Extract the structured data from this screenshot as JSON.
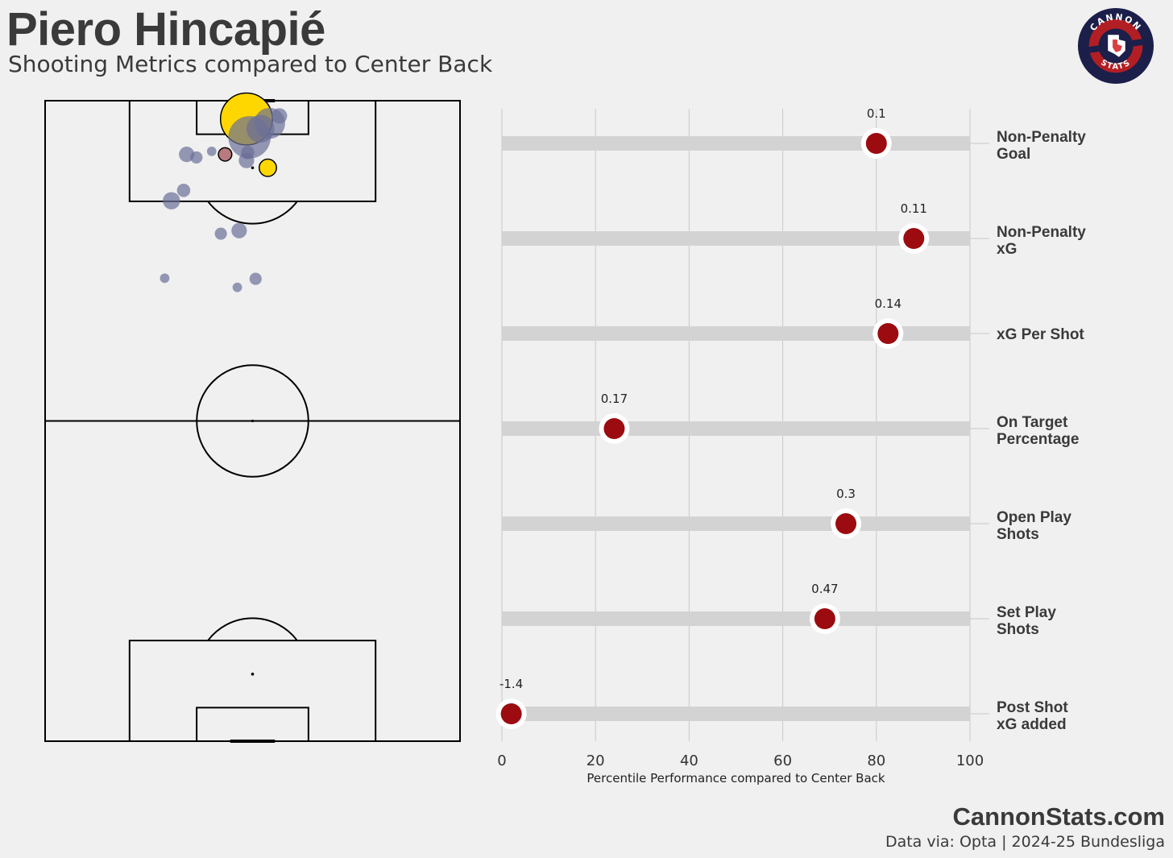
{
  "header": {
    "title": "Piero Hincapié",
    "subtitle": "Shooting Metrics compared to Center Back"
  },
  "logo": {
    "text_top": "CANNON",
    "text_bottom": "STATS",
    "colors": {
      "outer": "#1b1f4a",
      "inner": "#b11e24",
      "shield": "#ffffff"
    }
  },
  "footer": {
    "site": "CannonStats.com",
    "source": "Data via: Opta | 2024-25 Bundesliga"
  },
  "colors": {
    "background": "#f0f0f0",
    "marker": "#9b0b0f",
    "track": "#d3d3d3",
    "grid": "#c8c8c8",
    "goal_shot": "#ffd700",
    "miss_shot": "#6b6f97",
    "blocked_shot": "#a0464f"
  },
  "chart_data": [
    {
      "type": "scatter",
      "name": "shot-map",
      "pitch": {
        "length": 105,
        "width": 68,
        "orientation": "vertical"
      },
      "shots": [
        {
          "x": 33,
          "y": 3,
          "xg": 0.45,
          "outcome": "goal"
        },
        {
          "x": 36.5,
          "y": 11,
          "xg": 0.05,
          "outcome": "goal"
        },
        {
          "x": 36.8,
          "y": 3.7,
          "xg": 0.16,
          "outcome": "miss"
        },
        {
          "x": 35.3,
          "y": 4.6,
          "xg": 0.13,
          "outcome": "miss"
        },
        {
          "x": 33.5,
          "y": 6,
          "xg": 0.3,
          "outcome": "miss"
        },
        {
          "x": 38.4,
          "y": 2.5,
          "xg": 0.04,
          "outcome": "miss"
        },
        {
          "x": 33.2,
          "y": 8.5,
          "xg": 0.03,
          "outcome": "miss"
        },
        {
          "x": 33.0,
          "y": 9.8,
          "xg": 0.04,
          "outcome": "miss"
        },
        {
          "x": 29.5,
          "y": 8.8,
          "xg": 0.03,
          "outcome": "blocked"
        },
        {
          "x": 27.3,
          "y": 8.3,
          "xg": 0.015,
          "outcome": "miss"
        },
        {
          "x": 23.2,
          "y": 8.8,
          "xg": 0.04,
          "outcome": "miss"
        },
        {
          "x": 24.8,
          "y": 9.3,
          "xg": 0.025,
          "outcome": "miss"
        },
        {
          "x": 22.7,
          "y": 14.7,
          "xg": 0.03,
          "outcome": "miss"
        },
        {
          "x": 20.7,
          "y": 16.4,
          "xg": 0.05,
          "outcome": "miss"
        },
        {
          "x": 31.8,
          "y": 21.3,
          "xg": 0.04,
          "outcome": "miss"
        },
        {
          "x": 28.8,
          "y": 21.8,
          "xg": 0.025,
          "outcome": "miss"
        },
        {
          "x": 19.6,
          "y": 29.1,
          "xg": 0.015,
          "outcome": "miss"
        },
        {
          "x": 31.5,
          "y": 30.6,
          "xg": 0.015,
          "outcome": "miss"
        },
        {
          "x": 34.5,
          "y": 29.2,
          "xg": 0.025,
          "outcome": "miss"
        }
      ]
    },
    {
      "type": "scatter",
      "name": "percentile-chart",
      "xlabel": "Percentile Performance compared to Center Back",
      "xlim": [
        0,
        100
      ],
      "xticks": [
        0,
        20,
        40,
        60,
        80,
        100
      ],
      "metrics": [
        {
          "label_line1": "Non-Penalty",
          "label_line2": "Goal",
          "percentile": 80,
          "value": "0.1"
        },
        {
          "label_line1": "Non-Penalty",
          "label_line2": "xG",
          "percentile": 88,
          "value": "0.11"
        },
        {
          "label_line1": "xG Per Shot",
          "label_line2": "",
          "percentile": 82.5,
          "value": "0.14"
        },
        {
          "label_line1": "On Target",
          "label_line2": "Percentage",
          "percentile": 24,
          "value": "0.17"
        },
        {
          "label_line1": "Open Play",
          "label_line2": "Shots",
          "percentile": 73.5,
          "value": "0.3"
        },
        {
          "label_line1": "Set Play",
          "label_line2": "Shots",
          "percentile": 69,
          "value": "0.47"
        },
        {
          "label_line1": "Post Shot",
          "label_line2": "xG added",
          "percentile": 2,
          "value": "-1.4"
        }
      ]
    }
  ]
}
